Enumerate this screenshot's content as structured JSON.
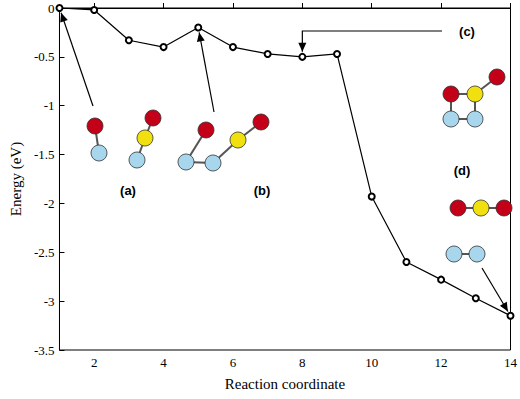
{
  "chart_data": {
    "type": "line",
    "x_label": "Reaction coordinate",
    "y_label": "Energy (eV)",
    "x": [
      1,
      2,
      3,
      4,
      5,
      6,
      7,
      8,
      9,
      10,
      11,
      12,
      13,
      14
    ],
    "values": [
      0,
      -0.02,
      -0.33,
      -0.4,
      -0.2,
      -0.4,
      -0.47,
      -0.5,
      -0.47,
      -1.93,
      -2.6,
      -2.78,
      -2.97,
      -3.15
    ],
    "color": "#000000",
    "marker": "open_circle",
    "line_style": "solid",
    "xlim": [
      1,
      14
    ],
    "xticks": [
      2,
      4,
      6,
      8,
      10,
      12,
      14
    ],
    "ylim": [
      -3.5,
      0
    ],
    "yticks": [
      -3.5,
      -3,
      -2.5,
      -2,
      -1.5,
      -1,
      -0.5,
      0
    ],
    "grid": false,
    "annotations": [
      {
        "label": "(a)",
        "x": 1,
        "y": 0
      },
      {
        "label": "(b)",
        "x": 5,
        "y": -0.2
      },
      {
        "label": "(c)",
        "x": 8,
        "y": -0.5
      },
      {
        "label": "(d)",
        "x": 14,
        "y": -3.15
      }
    ]
  }
}
